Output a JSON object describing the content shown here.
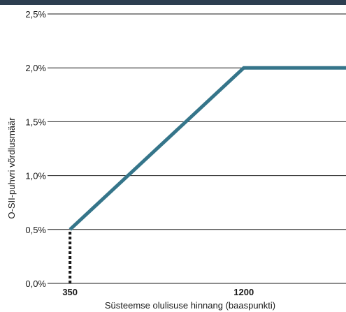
{
  "header": {
    "bar_color": "#2d3e50"
  },
  "chart_data": {
    "type": "line",
    "title": "",
    "xlabel": "Süsteemse olulisuse hinnang (baaspunkti)",
    "ylabel": "O-SII-puhvri võrdlusmäär",
    "xlim": [
      240,
      1700
    ],
    "ylim": [
      0,
      2.5
    ],
    "grid": true,
    "y_ticks": [
      {
        "value": 0,
        "label": "0,0%"
      },
      {
        "value": 0.5,
        "label": "0,5%"
      },
      {
        "value": 1.0,
        "label": "1,0%"
      },
      {
        "value": 1.5,
        "label": "1,5%"
      },
      {
        "value": 2.0,
        "label": "2,0%"
      },
      {
        "value": 2.5,
        "label": "2,5%"
      }
    ],
    "x_ticks": [
      {
        "value": 350,
        "label": "350"
      },
      {
        "value": 1200,
        "label": "1200"
      }
    ],
    "series": [
      {
        "color": "#35758a",
        "style": "solid",
        "x": [
          350,
          1200,
          1700
        ],
        "y": [
          0.5,
          2.0,
          2.0
        ]
      },
      {
        "color": "#1a1a1a",
        "style": "dotted",
        "x": [
          350,
          350
        ],
        "y": [
          0,
          0.5
        ]
      }
    ]
  }
}
